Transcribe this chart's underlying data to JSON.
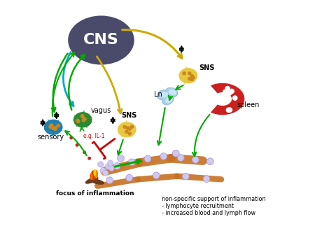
{
  "bg_color": "#ffffff",
  "cns_color": "#4a4a6a",
  "cns_label": "CNS",
  "sns_upper_label": "SNS",
  "sns_lower_label": "SNS",
  "vagus_label": "vagus",
  "sensory_label": "sensory",
  "ln_label": "Ln",
  "spleen_label": "spleen",
  "focus_label": "focus of inflammation",
  "nonspecific_line1": "non-specific support of inflammation",
  "nonspecific_line2": "- lymphocyte recruitment",
  "nonspecific_line3": "- increased blood and lymph flow",
  "neuron_color_green": "#2a8a30",
  "neuron_color_yellow": "#e8c840",
  "neuron_color_blue": "#2080b0",
  "dot_color_orange": "#cc8820",
  "arrow_green": "#00aa00",
  "arrow_blue": "#00aacc",
  "arrow_yellow": "#ccaa00",
  "arrow_black": "#111111",
  "arrow_red": "#cc0000",
  "vessel_color": "#c87020",
  "spleen_color": "#cc2020",
  "lymphocyte_color": "#d0c8f0",
  "lymphocyte_edge": "#a090d0",
  "fire_red": "#cc4400",
  "fire_orange": "#ee8800",
  "fire_yellow": "#ffcc00",
  "log_color": "#6b3a1f",
  "red_dot_color": "#cc2020"
}
